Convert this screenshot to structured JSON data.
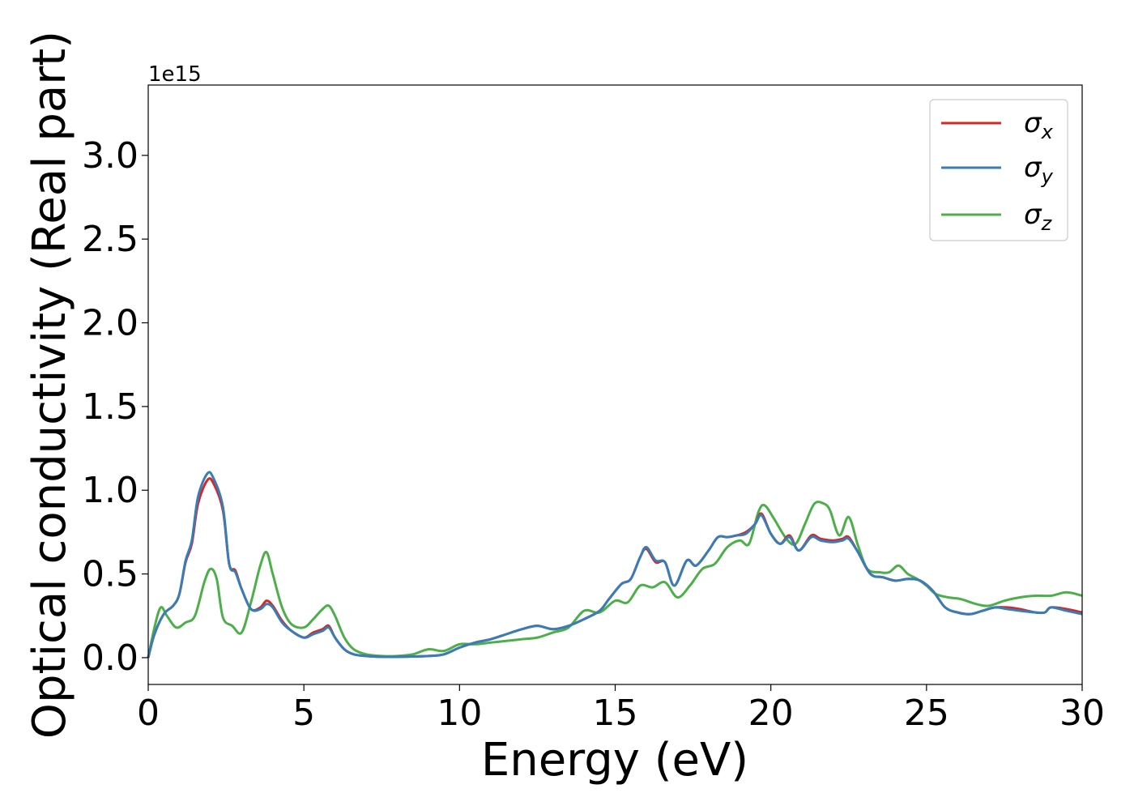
{
  "chart_data": {
    "type": "line",
    "xlabel": "Energy (eV)",
    "ylabel": "Optical conductivity (Real part)",
    "y_offset_label": "1e15",
    "xlim": [
      0,
      30
    ],
    "ylim": [
      -0.16,
      3.42
    ],
    "x_ticks": [
      0,
      5,
      10,
      15,
      20,
      25,
      30
    ],
    "x_tick_labels": [
      "0",
      "5",
      "10",
      "15",
      "20",
      "25",
      "30"
    ],
    "y_ticks": [
      0.0,
      0.5,
      1.0,
      1.5,
      2.0,
      2.5,
      3.0
    ],
    "y_tick_labels": [
      "0.0",
      "0.5",
      "1.0",
      "1.5",
      "2.0",
      "2.5",
      "3.0"
    ],
    "grid": false,
    "legend_position": "top-right",
    "series": [
      {
        "legend_base": "σ",
        "legend_sub": "x",
        "color": "#d62728",
        "x": [
          0,
          0.2,
          0.5,
          0.8,
          1.0,
          1.2,
          1.4,
          1.6,
          1.9,
          2.1,
          2.4,
          2.6,
          2.8,
          3.0,
          3.3,
          3.6,
          3.8,
          4.0,
          4.3,
          4.6,
          5.0,
          5.3,
          5.6,
          5.8,
          6.0,
          6.3,
          6.6,
          7.0,
          7.5,
          8.0,
          9.0,
          9.5,
          10.0,
          10.5,
          11.0,
          11.5,
          12.0,
          12.5,
          13.0,
          13.5,
          14.0,
          14.5,
          14.8,
          15.2,
          15.5,
          15.8,
          16.0,
          16.3,
          16.6,
          16.9,
          17.3,
          17.6,
          18.0,
          18.3,
          18.6,
          18.9,
          19.2,
          19.5,
          19.7,
          20.0,
          20.3,
          20.6,
          20.9,
          21.3,
          21.6,
          22.0,
          22.3,
          22.5,
          22.8,
          23.2,
          23.6,
          24.0,
          24.4,
          24.8,
          25.2,
          25.6,
          26.0,
          26.4,
          26.8,
          27.2,
          27.6,
          28.0,
          28.5,
          28.8,
          29.0,
          29.5,
          30.0
        ],
        "values": [
          0.0,
          0.14,
          0.26,
          0.31,
          0.38,
          0.57,
          0.68,
          0.92,
          1.06,
          1.04,
          0.88,
          0.56,
          0.52,
          0.41,
          0.29,
          0.3,
          0.34,
          0.31,
          0.22,
          0.16,
          0.12,
          0.15,
          0.17,
          0.19,
          0.12,
          0.05,
          0.02,
          0.01,
          0.005,
          0.005,
          0.01,
          0.02,
          0.06,
          0.09,
          0.11,
          0.14,
          0.17,
          0.19,
          0.17,
          0.19,
          0.23,
          0.28,
          0.35,
          0.44,
          0.47,
          0.6,
          0.65,
          0.57,
          0.57,
          0.43,
          0.58,
          0.55,
          0.64,
          0.72,
          0.72,
          0.73,
          0.75,
          0.8,
          0.86,
          0.74,
          0.68,
          0.73,
          0.64,
          0.73,
          0.71,
          0.7,
          0.71,
          0.72,
          0.63,
          0.5,
          0.48,
          0.46,
          0.47,
          0.46,
          0.4,
          0.3,
          0.27,
          0.26,
          0.28,
          0.3,
          0.3,
          0.29,
          0.27,
          0.27,
          0.3,
          0.29,
          0.27
        ]
      },
      {
        "legend_base": "σ",
        "legend_sub": "y",
        "color": "#377eb8",
        "x": [
          0,
          0.2,
          0.5,
          0.8,
          1.0,
          1.2,
          1.4,
          1.6,
          1.9,
          2.1,
          2.4,
          2.6,
          2.8,
          3.0,
          3.3,
          3.6,
          3.8,
          4.0,
          4.3,
          4.6,
          5.0,
          5.3,
          5.6,
          5.8,
          6.0,
          6.3,
          6.6,
          7.0,
          7.5,
          8.0,
          9.0,
          9.5,
          10.0,
          10.5,
          11.0,
          11.5,
          12.0,
          12.5,
          13.0,
          13.5,
          14.0,
          14.5,
          14.8,
          15.2,
          15.5,
          15.8,
          16.0,
          16.3,
          16.6,
          16.9,
          17.3,
          17.6,
          18.0,
          18.3,
          18.6,
          18.9,
          19.2,
          19.5,
          19.7,
          20.0,
          20.3,
          20.6,
          20.9,
          21.3,
          21.6,
          22.0,
          22.3,
          22.5,
          22.8,
          23.2,
          23.6,
          24.0,
          24.4,
          24.8,
          25.2,
          25.6,
          26.0,
          26.4,
          26.8,
          27.2,
          27.6,
          28.0,
          28.5,
          28.8,
          29.0,
          29.5,
          30.0
        ],
        "values": [
          0.0,
          0.14,
          0.26,
          0.31,
          0.38,
          0.58,
          0.7,
          0.96,
          1.1,
          1.07,
          0.9,
          0.56,
          0.51,
          0.41,
          0.29,
          0.29,
          0.32,
          0.3,
          0.21,
          0.16,
          0.12,
          0.14,
          0.16,
          0.18,
          0.12,
          0.05,
          0.02,
          0.01,
          0.005,
          0.005,
          0.01,
          0.02,
          0.06,
          0.09,
          0.11,
          0.14,
          0.17,
          0.19,
          0.17,
          0.19,
          0.23,
          0.28,
          0.35,
          0.44,
          0.47,
          0.6,
          0.66,
          0.58,
          0.57,
          0.43,
          0.58,
          0.55,
          0.64,
          0.72,
          0.72,
          0.73,
          0.74,
          0.8,
          0.85,
          0.74,
          0.68,
          0.72,
          0.64,
          0.72,
          0.7,
          0.69,
          0.7,
          0.71,
          0.63,
          0.5,
          0.48,
          0.46,
          0.47,
          0.46,
          0.4,
          0.3,
          0.27,
          0.26,
          0.28,
          0.3,
          0.29,
          0.28,
          0.27,
          0.27,
          0.3,
          0.28,
          0.26
        ]
      },
      {
        "legend_base": "σ",
        "legend_sub": "z",
        "color": "#4daf4a",
        "x": [
          0,
          0.2,
          0.4,
          0.6,
          0.9,
          1.2,
          1.5,
          1.8,
          2.0,
          2.2,
          2.4,
          2.7,
          3.0,
          3.3,
          3.6,
          3.8,
          4.0,
          4.3,
          4.6,
          5.0,
          5.3,
          5.6,
          5.8,
          6.0,
          6.3,
          6.6,
          7.0,
          7.5,
          8.0,
          8.5,
          9.0,
          9.5,
          10.0,
          10.5,
          11.0,
          11.5,
          12.0,
          12.5,
          13.0,
          13.5,
          14.0,
          14.5,
          15.0,
          15.4,
          15.8,
          16.2,
          16.6,
          17.0,
          17.4,
          17.8,
          18.2,
          18.6,
          19.0,
          19.3,
          19.6,
          19.8,
          20.1,
          20.5,
          20.8,
          21.1,
          21.4,
          21.7,
          21.9,
          22.2,
          22.5,
          22.8,
          23.1,
          23.5,
          23.8,
          24.1,
          24.4,
          24.7,
          25.0,
          25.3,
          25.7,
          26.1,
          26.6,
          27.0,
          27.5,
          28.0,
          28.5,
          29.0,
          29.5,
          30.0
        ],
        "values": [
          0.0,
          0.18,
          0.3,
          0.25,
          0.18,
          0.21,
          0.25,
          0.45,
          0.53,
          0.47,
          0.24,
          0.19,
          0.15,
          0.33,
          0.55,
          0.63,
          0.5,
          0.3,
          0.2,
          0.18,
          0.23,
          0.29,
          0.31,
          0.25,
          0.12,
          0.05,
          0.02,
          0.01,
          0.01,
          0.02,
          0.05,
          0.04,
          0.08,
          0.08,
          0.09,
          0.1,
          0.11,
          0.12,
          0.15,
          0.18,
          0.28,
          0.27,
          0.34,
          0.33,
          0.43,
          0.42,
          0.45,
          0.36,
          0.43,
          0.53,
          0.56,
          0.66,
          0.7,
          0.68,
          0.87,
          0.91,
          0.83,
          0.71,
          0.68,
          0.8,
          0.92,
          0.92,
          0.88,
          0.73,
          0.84,
          0.67,
          0.53,
          0.51,
          0.51,
          0.55,
          0.5,
          0.47,
          0.43,
          0.38,
          0.36,
          0.35,
          0.32,
          0.31,
          0.34,
          0.36,
          0.37,
          0.37,
          0.39,
          0.37
        ]
      }
    ]
  }
}
